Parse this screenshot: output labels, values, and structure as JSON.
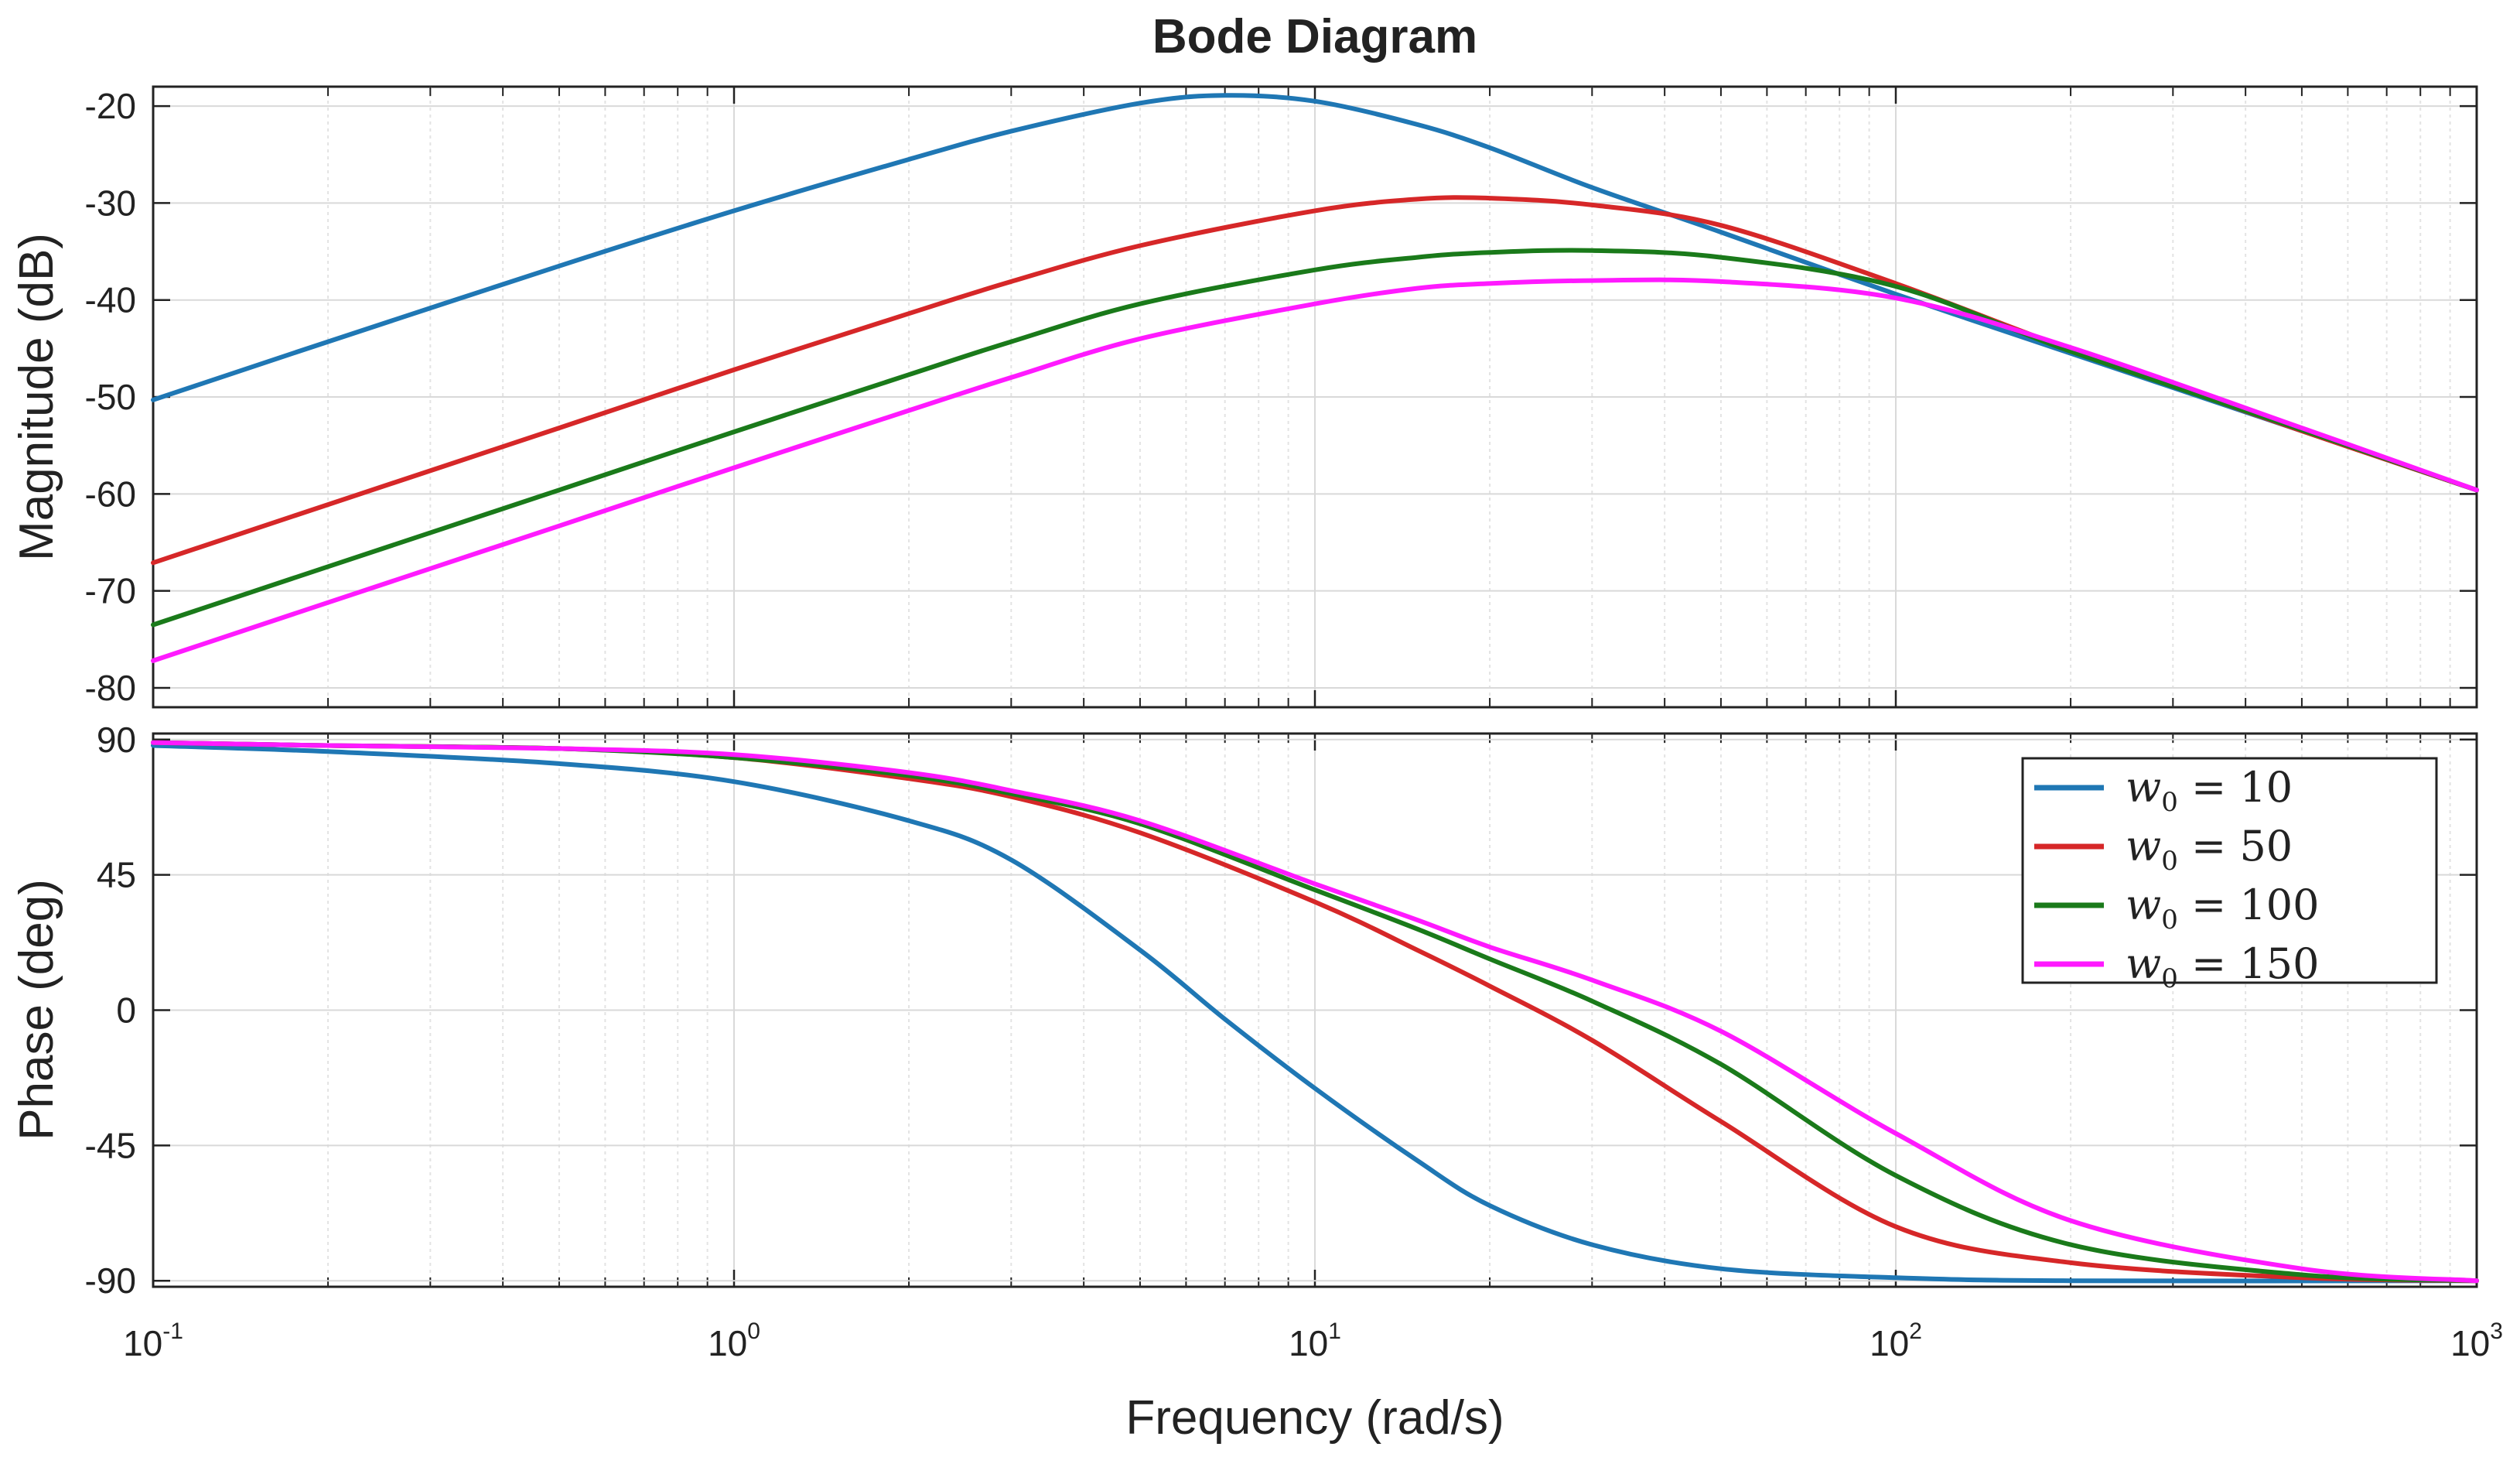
{
  "chart_data": {
    "type": "line",
    "title": "Bode Diagram",
    "xlabel": "Frequency  (rad/s)",
    "xscale": "log",
    "xlim": [
      0.1,
      1000
    ],
    "x_ticks": [
      {
        "value": 0.1,
        "base": "10",
        "exp": "-1"
      },
      {
        "value": 1,
        "base": "10",
        "exp": "0"
      },
      {
        "value": 10,
        "base": "10",
        "exp": "1"
      },
      {
        "value": 100,
        "base": "10",
        "exp": "2"
      },
      {
        "value": 1000,
        "base": "10",
        "exp": "3"
      }
    ],
    "grid": true,
    "legend": {
      "location": "top-right of phase plot",
      "entries": [
        {
          "var": "w",
          "sub": "0",
          "eq": " = ",
          "value": "10"
        },
        {
          "var": "w",
          "sub": "0",
          "eq": " = ",
          "value": "50"
        },
        {
          "var": "w",
          "sub": "0",
          "eq": " = ",
          "value": "100"
        },
        {
          "var": "w",
          "sub": "0",
          "eq": " = ",
          "value": "150"
        }
      ]
    },
    "subplots": [
      {
        "name": "magnitude",
        "ylabel": "Magnitude (dB)",
        "ylim": [
          -82,
          -18
        ],
        "yticks": [
          -20,
          -30,
          -40,
          -50,
          -60,
          -70,
          -80
        ],
        "ytick_labels": [
          "-20",
          "-30",
          "-40",
          "-50",
          "-60",
          "-70",
          "-80"
        ],
        "series": [
          {
            "name": "w0 = 10",
            "color": "#1f77b4",
            "x": [
              0.1,
              0.2,
              0.5,
              1,
              2,
              3,
              5,
              7,
              10,
              15,
              20,
              30,
              50,
              100,
              200,
              500,
              1000
            ],
            "values": [
              -50.3,
              -44.3,
              -36.5,
              -30.8,
              -25.5,
              -22.6,
              -19.7,
              -18.9,
              -19.5,
              -21.9,
              -24.3,
              -28.4,
              -33.0,
              -39.4,
              -45.5,
              -53.5,
              -59.6
            ]
          },
          {
            "name": "w0 = 50",
            "color": "#d62728",
            "x": [
              0.1,
              0.2,
              0.5,
              1,
              2,
              3,
              5,
              10,
              15,
              20,
              30,
              50,
              100,
              200,
              500,
              1000
            ],
            "values": [
              -67.1,
              -61.1,
              -53.2,
              -47.2,
              -41.4,
              -38.1,
              -34.4,
              -30.8,
              -29.6,
              -29.5,
              -30.2,
              -32.3,
              -38.3,
              -45.1,
              -53.5,
              -59.6
            ]
          },
          {
            "name": "w0 = 100",
            "color": "#1a7a1a",
            "x": [
              0.1,
              0.2,
              0.5,
              1,
              2,
              3,
              5,
              10,
              15,
              20,
              30,
              50,
              100,
              200,
              500,
              1000
            ],
            "values": [
              -73.5,
              -67.5,
              -59.6,
              -53.6,
              -47.7,
              -44.3,
              -40.4,
              -36.9,
              -35.6,
              -35.1,
              -34.9,
              -35.6,
              -38.6,
              -45.3,
              -53.4,
              -59.6
            ]
          },
          {
            "name": "w0 = 150",
            "color": "#ff1aff",
            "x": [
              0.1,
              0.2,
              0.5,
              1,
              2,
              3,
              5,
              10,
              15,
              20,
              30,
              50,
              100,
              200,
              500,
              1000
            ],
            "values": [
              -77.2,
              -71.2,
              -63.3,
              -57.3,
              -51.4,
              -48.0,
              -44.0,
              -40.4,
              -38.8,
              -38.3,
              -38.0,
              -38.1,
              -39.8,
              -44.9,
              -53.2,
              -59.6
            ]
          }
        ]
      },
      {
        "name": "phase",
        "ylabel": "Phase (deg)",
        "ylim": [
          -92,
          92
        ],
        "yticks": [
          90,
          45,
          0,
          -45,
          -90
        ],
        "ytick_labels": [
          "90",
          "45",
          "0",
          "-45",
          "-90"
        ],
        "series": [
          {
            "name": "w0 = 10",
            "color": "#1f77b4",
            "x": [
              0.1,
              0.2,
              0.5,
              1,
              2,
              3,
              5,
              7,
              10,
              15,
              20,
              30,
              50,
              100,
              200,
              1000
            ],
            "values": [
              88,
              86,
              82,
              76,
              63,
              50,
              20,
              -3,
              -26,
              -50,
              -65,
              -78,
              -86,
              -89,
              -90,
              -90
            ]
          },
          {
            "name": "w0 = 50",
            "color": "#d62728",
            "x": [
              0.1,
              0.2,
              0.5,
              1,
              2,
              3,
              5,
              10,
              15,
              20,
              30,
              50,
              100,
              200,
              500,
              1000
            ],
            "values": [
              89,
              88,
              87,
              84,
              77,
              71,
              59,
              36,
              20,
              8,
              -10,
              -37,
              -72,
              -84,
              -89,
              -90
            ]
          },
          {
            "name": "w0 = 100",
            "color": "#1a7a1a",
            "x": [
              0.1,
              0.2,
              0.5,
              1,
              2,
              3,
              5,
              10,
              15,
              20,
              30,
              50,
              100,
              200,
              500,
              1000
            ],
            "values": [
              89,
              88,
              87,
              84,
              78,
              72,
              62,
              40,
              27,
              17,
              3,
              -18,
              -55,
              -78,
              -88,
              -90
            ]
          },
          {
            "name": "w0 = 150",
            "color": "#ff1aff",
            "x": [
              0.1,
              0.2,
              0.5,
              1,
              2,
              3,
              5,
              10,
              15,
              20,
              30,
              50,
              100,
              200,
              500,
              1000
            ],
            "values": [
              89,
              88,
              87,
              85,
              79,
              73,
              63,
              42,
              30,
              21,
              10,
              -7,
              -41,
              -70,
              -86,
              -90
            ]
          }
        ]
      }
    ]
  }
}
